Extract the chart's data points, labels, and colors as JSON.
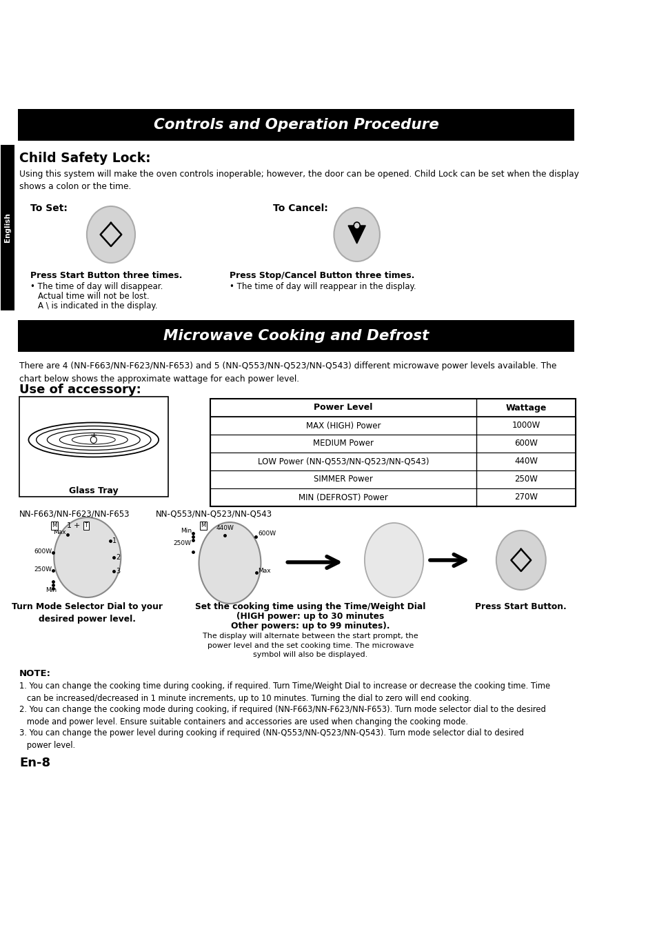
{
  "page_bg": "#ffffff",
  "title1": "Controls and Operation Procedure",
  "title2": "Microwave Cooking and Defrost",
  "child_lock_title": "Child Safety Lock:",
  "child_lock_desc": "Using this system will make the oven controls inoperable; however, the door can be opened. Child Lock can be set when the display\nshows a colon or the time.",
  "to_set_label": "To Set:",
  "to_cancel_label": "To Cancel:",
  "press_start_title": "Press Start Button three times.",
  "press_stop_title": "Press Stop/Cancel Button three times.",
  "press_stop_bullet": "The time of day will reappear in the display.",
  "microwave_intro": "There are 4 (NN-F663/NN-F623/NN-F653) and 5 (NN-Q553/NN-Q523/NN-Q543) different microwave power levels available. The\nchart below shows the approximate wattage for each power level.",
  "use_accessory_title": "Use of accessory:",
  "glass_tray_label": "Glass Tray",
  "table_headers": [
    "Power Level",
    "Wattage"
  ],
  "table_rows": [
    [
      "MAX (HIGH) Power",
      "1000W"
    ],
    [
      "MEDIUM Power",
      "600W"
    ],
    [
      "LOW Power (NN-Q553/NN-Q523/NN-Q543)",
      "440W"
    ],
    [
      "SIMMER Power",
      "250W"
    ],
    [
      "MIN (DEFROST) Power",
      "270W"
    ]
  ],
  "model_label1": "NN-F663/NN-F623/NN-F653",
  "model_label2": "NN-Q553/NN-Q523/NN-Q543",
  "step1_title": "Turn Mode Selector Dial to your\ndesired power level.",
  "step2_title": "Set the cooking time using the Time/Weight Dial\n(HIGH power: up to 30 minutes\nOther powers: up to 99 minutes).",
  "step2_extra": "The display will alternate between the start prompt, the\npower level and the set cooking time. The microwave\nsymbol will also be displayed.",
  "step3_title": "Press Start Button.",
  "note_title": "NOTE:",
  "notes": [
    "You can change the cooking time during cooking, if required. Turn Time/Weight Dial to increase or decrease the cooking time. Time\n   can be increased/decreased in 1 minute increments, up to 10 minutes. Turning the dial to zero will end cooking.",
    "You can change the cooking mode during cooking, if required (NN-F663/NN-F623/NN-F653). Turn mode selector dial to the desired\n   mode and power level. Ensure suitable containers and accessories are used when changing the cooking mode.",
    "You can change the power level during cooking if required (NN-Q553/NN-Q523/NN-Q543). Turn mode selector dial to desired\n   power level."
  ],
  "page_number": "En-8"
}
